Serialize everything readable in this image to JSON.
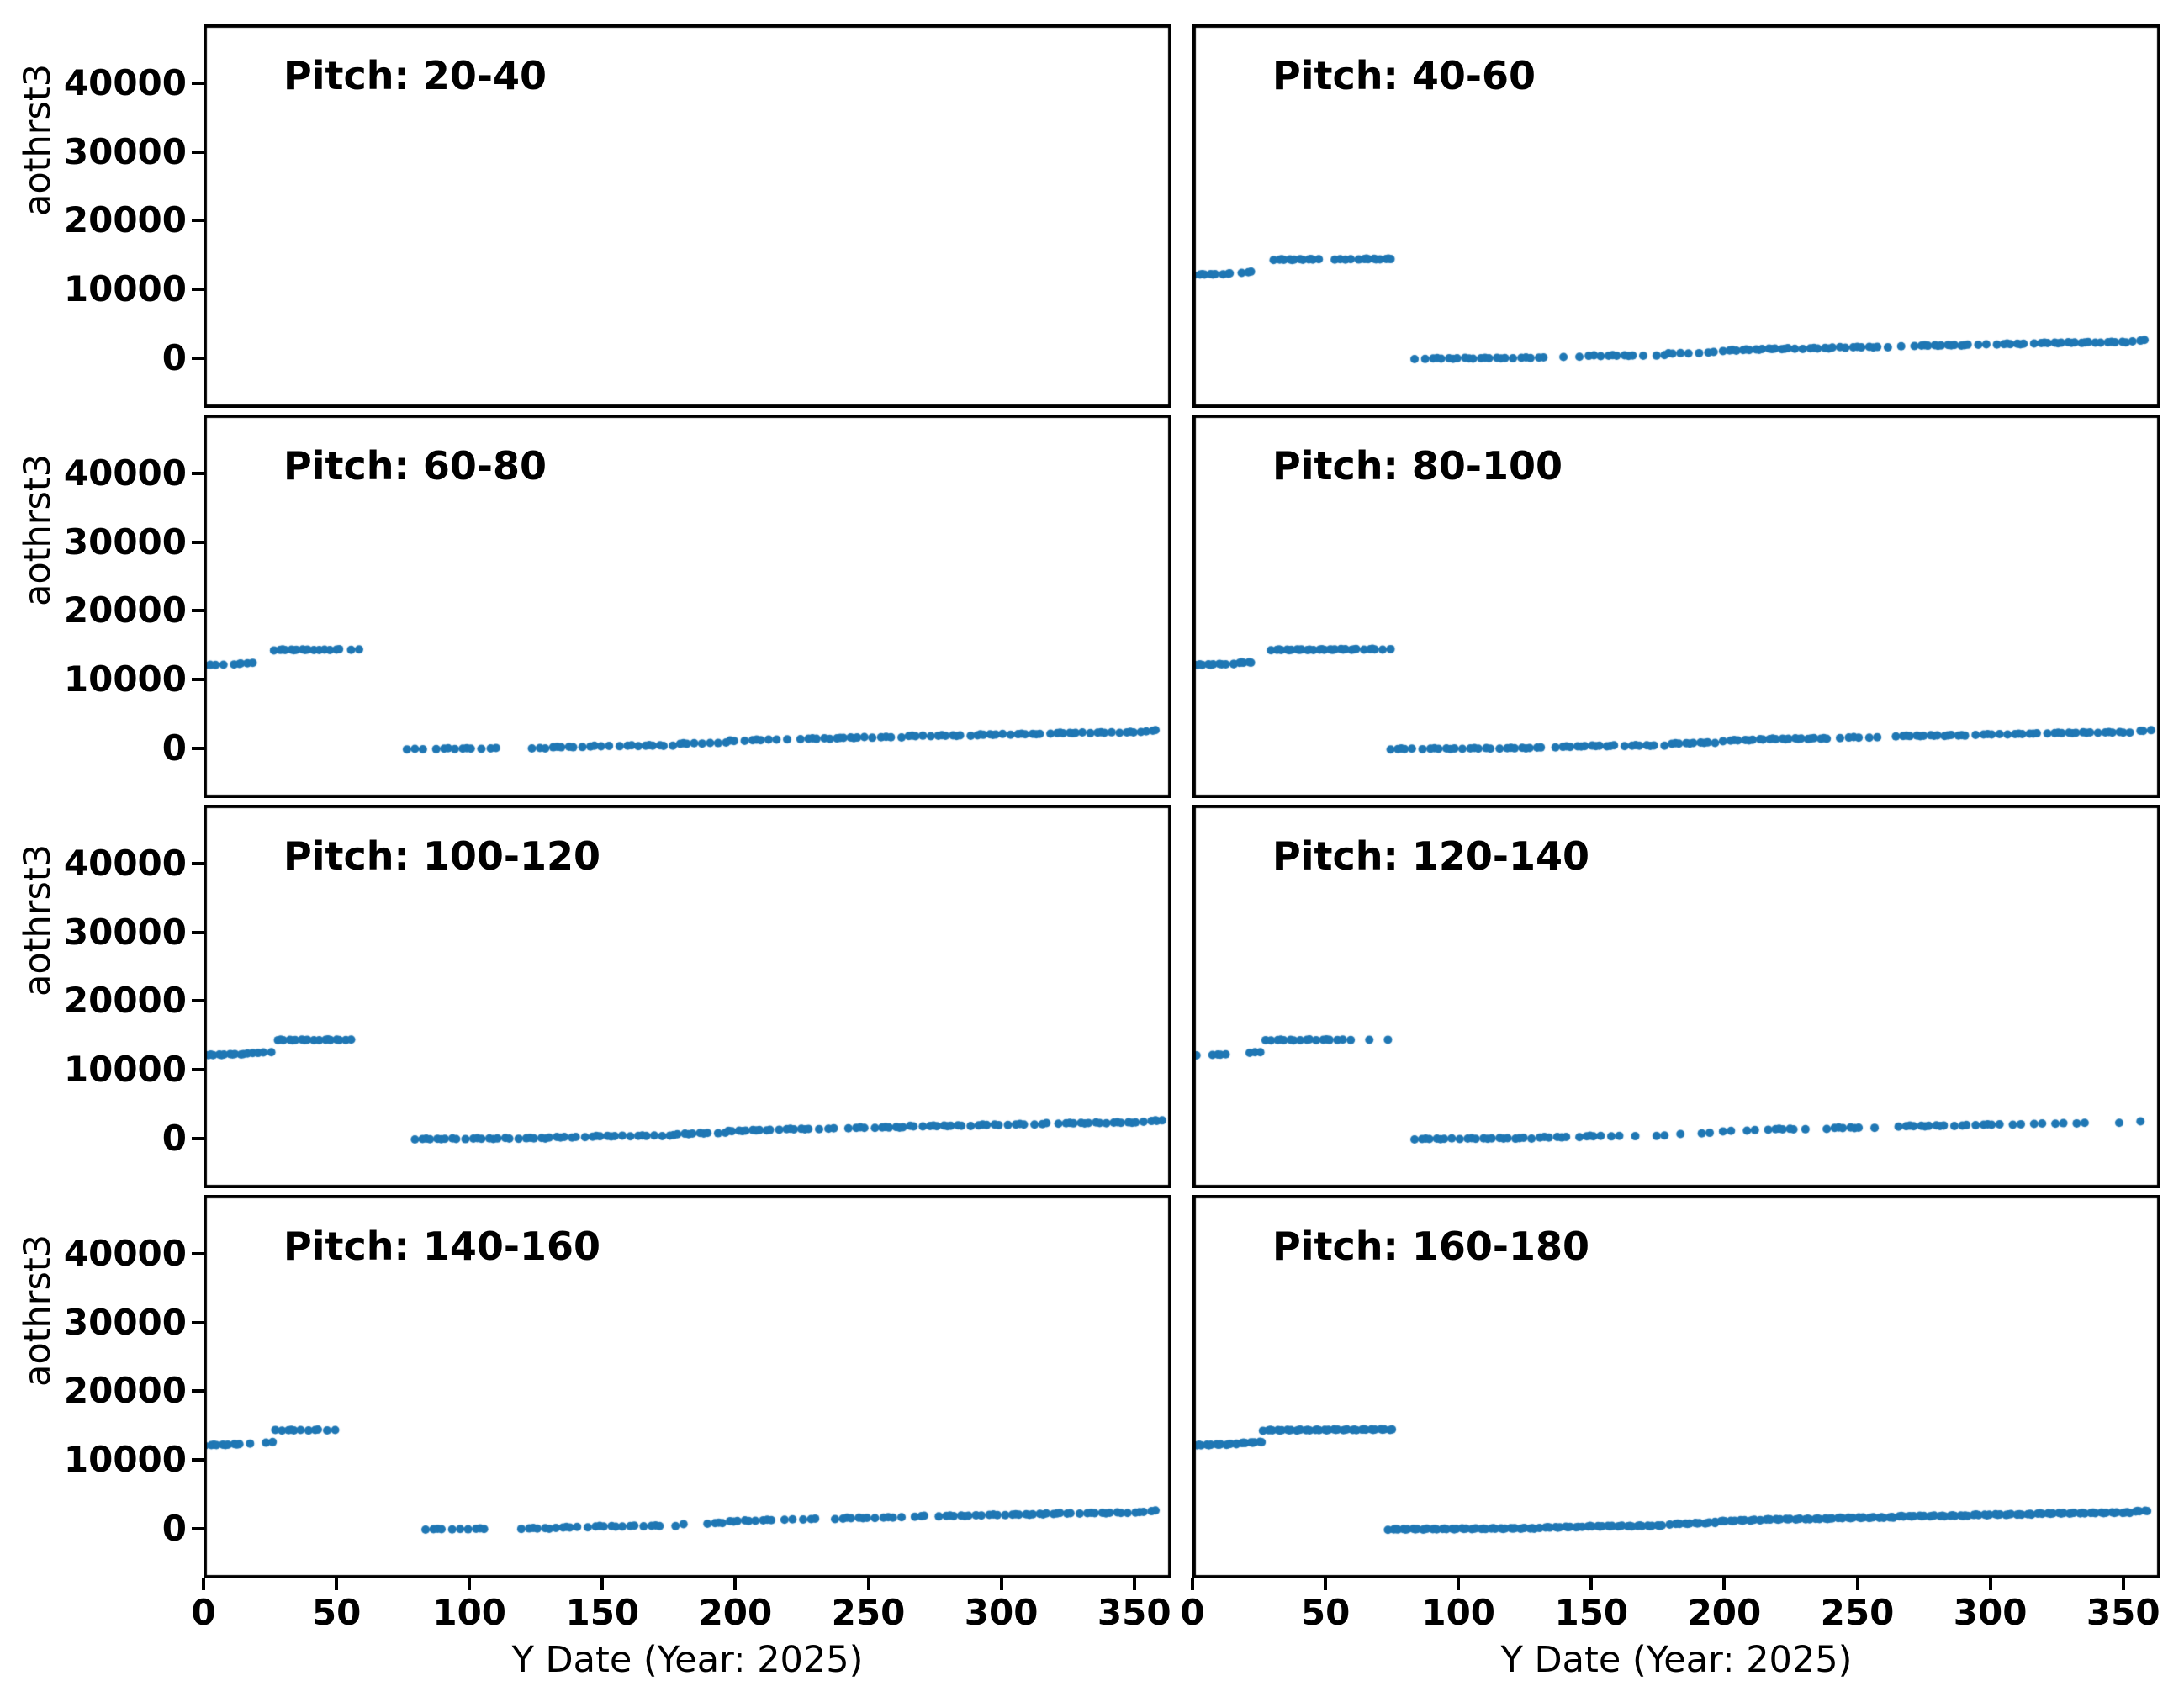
{
  "figure": {
    "background": "#ffffff",
    "spine_color": "#000000",
    "text_color": "#000000"
  },
  "chart_data": {
    "type": "scatter",
    "title": "",
    "xlabel": "Y Date (Year: 2025)",
    "ylabel": "aothrst3",
    "grid": false,
    "legend": null,
    "marker_color": "#1f77b4",
    "xlim": [
      0,
      364
    ],
    "ylim": [
      -7165,
      48500
    ],
    "xticks": [
      0,
      50,
      100,
      150,
      200,
      250,
      300,
      350
    ],
    "yticks": [
      0,
      10000,
      20000,
      30000,
      40000
    ],
    "layout": "4 rows x 2 cols, shared x and y axes; y tick labels on left column only, x tick labels on bottom row only",
    "runs_note": "Each scatter panel's data is encoded as runs [x_start, x_end, n_points]; point y-values follow the piecewise-linear level tables [x0,x1,y0,y1] below (two bands: upper band days ~0-75, lower band days ~74-360).",
    "levels_upper": [
      [
        0,
        16,
        12150,
        12330
      ],
      [
        16,
        26,
        12430,
        12640
      ],
      [
        26,
        76,
        14330,
        14460
      ]
    ],
    "levels_lower": [
      [
        70,
        130,
        -60,
        110
      ],
      [
        130,
        146,
        200,
        320
      ],
      [
        146,
        178,
        380,
        490
      ],
      [
        178,
        196,
        700,
        900
      ],
      [
        196,
        214,
        1100,
        1320
      ],
      [
        214,
        240,
        1380,
        1500
      ],
      [
        240,
        264,
        1580,
        1700
      ],
      [
        264,
        292,
        1830,
        1950
      ],
      [
        292,
        316,
        2030,
        2150
      ],
      [
        316,
        353,
        2230,
        2400
      ],
      [
        353,
        361,
        2520,
        2700
      ]
    ],
    "panels": [
      {
        "title": "Pitch: 20-40",
        "upper": [],
        "lower": []
      },
      {
        "title": "Pitch: 40-60",
        "upper": [
          [
            1,
            9,
            7
          ],
          [
            12,
            14,
            3
          ],
          [
            19,
            22,
            3
          ],
          [
            31,
            40,
            8
          ],
          [
            42,
            47,
            5
          ],
          [
            54,
            55,
            2
          ],
          [
            58,
            59,
            2
          ],
          [
            63,
            69,
            6
          ],
          [
            71,
            75,
            4
          ]
        ],
        "lower": [
          [
            84,
            85,
            1
          ],
          [
            88,
            104,
            9
          ],
          [
            106,
            118,
            7
          ],
          [
            121,
            132,
            6
          ],
          [
            140,
            141,
            1
          ],
          [
            146,
            151,
            3
          ],
          [
            154,
            166,
            7
          ],
          [
            170,
            171,
            1
          ],
          [
            175,
            183,
            5
          ],
          [
            187,
            188,
            1
          ],
          [
            191,
            196,
            3
          ],
          [
            200,
            203,
            3
          ],
          [
            205,
            226,
            14
          ],
          [
            230,
            243,
            8
          ],
          [
            246,
            258,
            7
          ],
          [
            262,
            263,
            1
          ],
          [
            267,
            268,
            1
          ],
          [
            272,
            292,
            13
          ],
          [
            296,
            298,
            2
          ],
          [
            303,
            313,
            7
          ],
          [
            317,
            339,
            14
          ],
          [
            342,
            351,
            6
          ],
          [
            354,
            358,
            3
          ]
        ]
      },
      {
        "title": "Pitch: 60-80",
        "upper": [
          [
            1,
            2,
            2
          ],
          [
            5,
            6,
            1
          ],
          [
            8,
            9,
            1
          ],
          [
            12,
            14,
            3
          ],
          [
            17,
            18,
            2
          ],
          [
            27,
            41,
            11
          ],
          [
            44,
            45,
            2
          ],
          [
            48,
            51,
            3
          ],
          [
            56,
            58,
            2
          ]
        ],
        "lower": [
          [
            77,
            79,
            2
          ],
          [
            83,
            84,
            1
          ],
          [
            88,
            92,
            3
          ],
          [
            95,
            101,
            4
          ],
          [
            105,
            110,
            3
          ],
          [
            124,
            126,
            2
          ],
          [
            129,
            139,
            6
          ],
          [
            143,
            147,
            3
          ],
          [
            150,
            152,
            2
          ],
          [
            157,
            161,
            3
          ],
          [
            164,
            173,
            6
          ],
          [
            177,
            184,
            5
          ],
          [
            188,
            190,
            2
          ],
          [
            194,
            200,
            4
          ],
          [
            204,
            212,
            5
          ],
          [
            216,
            217,
            1
          ],
          [
            220,
            221,
            1
          ],
          [
            225,
            233,
            5
          ],
          [
            236,
            248,
            8
          ],
          [
            252,
            259,
            4
          ],
          [
            263,
            270,
            5
          ],
          [
            274,
            285,
            7
          ],
          [
            289,
            300,
            8
          ],
          [
            304,
            315,
            7
          ],
          [
            319,
            330,
            8
          ],
          [
            334,
            341,
            5
          ],
          [
            345,
            352,
            5
          ],
          [
            355,
            358,
            3
          ]
        ]
      },
      {
        "title": "Pitch: 80-100",
        "upper": [
          [
            0,
            11,
            9
          ],
          [
            13,
            15,
            2
          ],
          [
            16,
            22,
            6
          ],
          [
            30,
            44,
            12
          ],
          [
            46,
            62,
            13
          ],
          [
            65,
            69,
            4
          ],
          [
            72,
            74,
            2
          ]
        ],
        "lower": [
          [
            75,
            82,
            5
          ],
          [
            87,
            99,
            7
          ],
          [
            102,
            112,
            6
          ],
          [
            116,
            131,
            9
          ],
          [
            137,
            159,
            13
          ],
          [
            163,
            174,
            7
          ],
          [
            178,
            196,
            11
          ],
          [
            200,
            213,
            8
          ],
          [
            215,
            239,
            16
          ],
          [
            244,
            251,
            4
          ],
          [
            255,
            257,
            2
          ],
          [
            265,
            291,
            16
          ],
          [
            295,
            303,
            5
          ],
          [
            307,
            318,
            7
          ],
          [
            322,
            338,
            10
          ],
          [
            341,
            350,
            6
          ],
          [
            353,
            356,
            2
          ],
          [
            358,
            360,
            2
          ]
        ]
      },
      {
        "title": "Pitch: 100-120",
        "upper": [
          [
            0,
            15,
            12
          ],
          [
            17,
            18,
            2
          ],
          [
            21,
            22,
            2
          ],
          [
            26,
            41,
            11
          ],
          [
            44,
            51,
            6
          ],
          [
            54,
            55,
            2
          ]
        ],
        "lower": [
          [
            80,
            95,
            9
          ],
          [
            99,
            115,
            9
          ],
          [
            119,
            140,
            12
          ],
          [
            144,
            157,
            8
          ],
          [
            161,
            169,
            5
          ],
          [
            173,
            190,
            10
          ],
          [
            194,
            213,
            12
          ],
          [
            217,
            228,
            7
          ],
          [
            232,
            237,
            3
          ],
          [
            243,
            249,
            4
          ],
          [
            253,
            267,
            9
          ],
          [
            271,
            285,
            9
          ],
          [
            289,
            299,
            6
          ],
          [
            303,
            309,
            4
          ],
          [
            313,
            317,
            3
          ],
          [
            322,
            337,
            9
          ],
          [
            340,
            351,
            7
          ],
          [
            354,
            358,
            3
          ],
          [
            359,
            360,
            2
          ]
        ]
      },
      {
        "title": "Pitch: 120-140",
        "upper": [
          [
            2,
            2,
            1
          ],
          [
            8,
            9,
            2
          ],
          [
            11,
            12,
            2
          ],
          [
            22,
            23,
            2
          ],
          [
            26,
            27,
            2
          ],
          [
            30,
            38,
            6
          ],
          [
            41,
            44,
            3
          ],
          [
            47,
            52,
            4
          ],
          [
            55,
            56,
            2
          ],
          [
            60,
            61,
            1
          ],
          [
            67,
            68,
            1
          ],
          [
            74,
            75,
            1
          ]
        ],
        "lower": [
          [
            84,
            97,
            8
          ],
          [
            101,
            125,
            13
          ],
          [
            128,
            141,
            7
          ],
          [
            146,
            153,
            5
          ],
          [
            158,
            160,
            2
          ],
          [
            167,
            168,
            1
          ],
          [
            175,
            177,
            2
          ],
          [
            184,
            185,
            1
          ],
          [
            192,
            194,
            2
          ],
          [
            200,
            202,
            2
          ],
          [
            209,
            211,
            2
          ],
          [
            217,
            226,
            6
          ],
          [
            231,
            232,
            1
          ],
          [
            239,
            251,
            7
          ],
          [
            257,
            258,
            1
          ],
          [
            266,
            283,
            10
          ],
          [
            287,
            291,
            3
          ],
          [
            295,
            303,
            5
          ],
          [
            309,
            311,
            2
          ],
          [
            317,
            319,
            2
          ],
          [
            325,
            327,
            2
          ],
          [
            333,
            335,
            2
          ],
          [
            349,
            350,
            1
          ],
          [
            357,
            358,
            1
          ]
        ]
      },
      {
        "title": "Pitch: 140-160",
        "upper": [
          [
            1,
            14,
            10
          ],
          [
            18,
            19,
            1
          ],
          [
            24,
            27,
            3
          ],
          [
            30,
            36,
            5
          ],
          [
            40,
            43,
            3
          ],
          [
            47,
            49,
            2
          ]
        ],
        "lower": [
          [
            84,
            90,
            4
          ],
          [
            94,
            96,
            2
          ],
          [
            100,
            106,
            4
          ],
          [
            120,
            130,
            6
          ],
          [
            133,
            140,
            5
          ],
          [
            145,
            155,
            6
          ],
          [
            158,
            162,
            3
          ],
          [
            166,
            172,
            4
          ],
          [
            178,
            180,
            2
          ],
          [
            190,
            205,
            9
          ],
          [
            208,
            214,
            4
          ],
          [
            219,
            221,
            2
          ],
          [
            226,
            230,
            3
          ],
          [
            238,
            250,
            7
          ],
          [
            253,
            262,
            5
          ],
          [
            268,
            271,
            3
          ],
          [
            277,
            290,
            8
          ],
          [
            293,
            299,
            4
          ],
          [
            302,
            326,
            15
          ],
          [
            330,
            345,
            9
          ],
          [
            348,
            352,
            3
          ],
          [
            354,
            358,
            3
          ]
        ]
      },
      {
        "title": "Pitch: 160-180",
        "upper": [
          [
            0,
            16,
            14
          ],
          [
            17,
            26,
            9
          ],
          [
            27,
            75,
            42
          ]
        ],
        "lower": [
          [
            74,
            129,
            46
          ],
          [
            131,
            145,
            12
          ],
          [
            147,
            177,
            25
          ],
          [
            180,
            196,
            14
          ],
          [
            197,
            213,
            14
          ],
          [
            214,
            240,
            22
          ],
          [
            241,
            263,
            18
          ],
          [
            264,
            291,
            22
          ],
          [
            292,
            315,
            18
          ],
          [
            316,
            352,
            28
          ],
          [
            353,
            359,
            6
          ]
        ]
      }
    ]
  }
}
